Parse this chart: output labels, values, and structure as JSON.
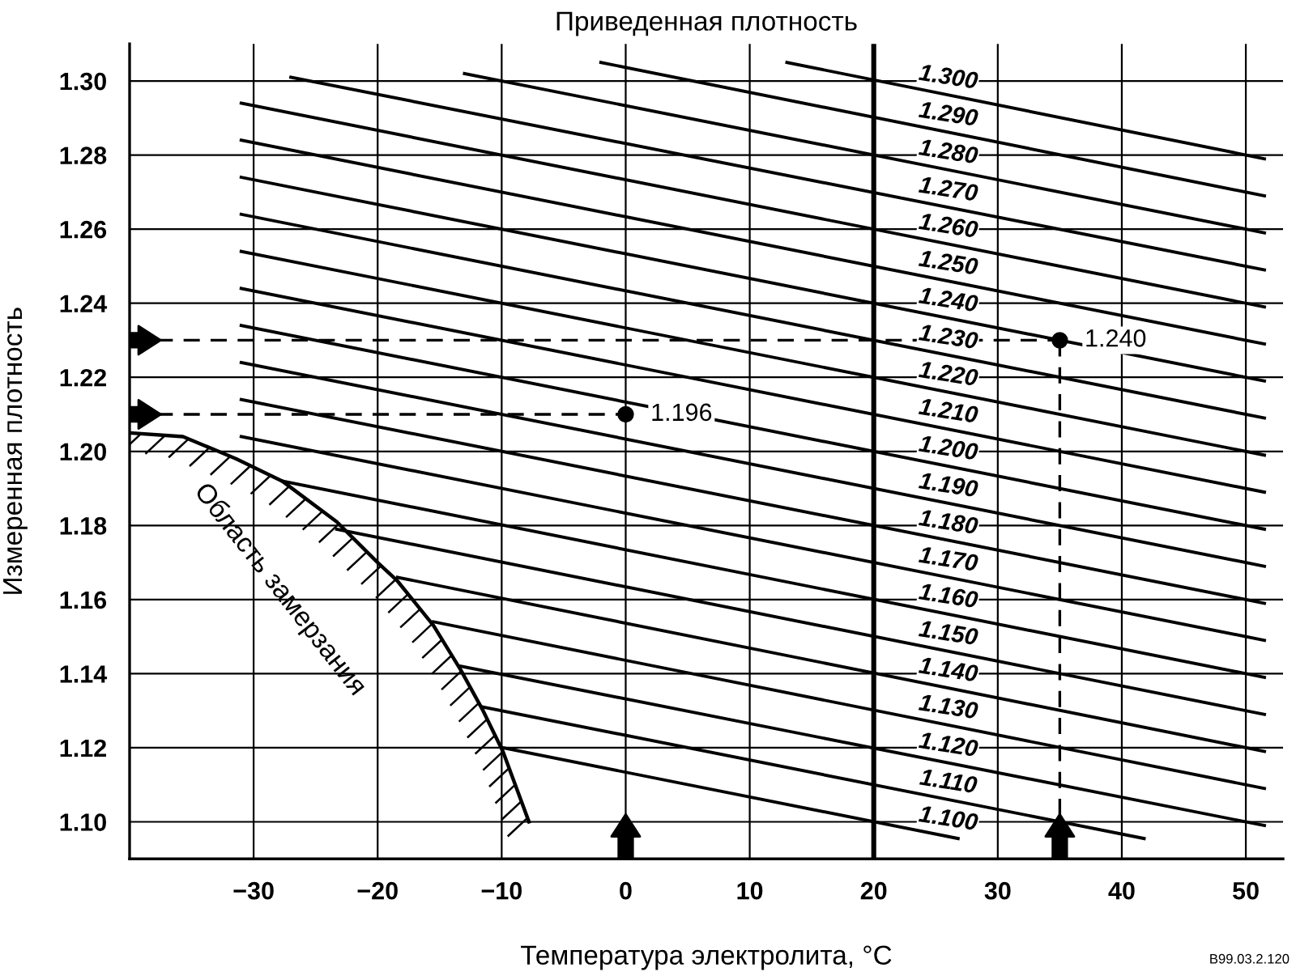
{
  "chart_data": {
    "type": "line",
    "title": "Приведенная плотность",
    "xlabel": "Температура электролита, °C",
    "ylabel": "Измеренная плотность",
    "xlim": [
      -40,
      53
    ],
    "ylim": [
      1.09,
      1.31
    ],
    "xticks": [
      {
        "value": -30,
        "label": "−30"
      },
      {
        "value": -20,
        "label": "−20"
      },
      {
        "value": -10,
        "label": "−10"
      },
      0,
      10,
      20,
      30,
      40,
      50
    ],
    "yticks": [
      {
        "value": 1.1,
        "label": "1.10"
      },
      {
        "value": 1.12,
        "label": "1.12"
      },
      {
        "value": 1.14,
        "label": "1.14"
      },
      {
        "value": 1.16,
        "label": "1.16"
      },
      {
        "value": 1.18,
        "label": "1.18"
      },
      {
        "value": 1.2,
        "label": "1.20"
      },
      {
        "value": 1.22,
        "label": "1.22"
      },
      {
        "value": 1.24,
        "label": "1.24"
      },
      {
        "value": 1.26,
        "label": "1.26"
      },
      {
        "value": 1.28,
        "label": "1.28"
      },
      {
        "value": 1.3,
        "label": "1.30"
      }
    ],
    "ref_lines": [
      {
        "axis": "x",
        "value": 20,
        "color": "#000000"
      }
    ],
    "grid": true,
    "legend": false,
    "marker": "none",
    "series": [
      {
        "name": "1.300",
        "color": "#000000",
        "x": [
          13,
          51.5
        ],
        "values": [
          1.305,
          1.279
        ]
      },
      {
        "name": "1.290",
        "color": "#000000",
        "x": [
          -2,
          51.5
        ],
        "values": [
          1.305,
          1.269
        ]
      },
      {
        "name": "1.280",
        "color": "#000000",
        "x": [
          -13,
          51.5
        ],
        "values": [
          1.302,
          1.259
        ]
      },
      {
        "name": "1.270",
        "color": "#000000",
        "x": [
          -27,
          51.5
        ],
        "values": [
          1.301,
          1.249
        ]
      },
      {
        "name": "1.260",
        "color": "#000000",
        "x": [
          -31,
          51.5
        ],
        "values": [
          1.294,
          1.239
        ]
      },
      {
        "name": "1.250",
        "color": "#000000",
        "x": [
          -31,
          51.5
        ],
        "values": [
          1.284,
          1.229
        ]
      },
      {
        "name": "1.240",
        "color": "#000000",
        "x": [
          -31,
          51.5
        ],
        "values": [
          1.274,
          1.219
        ]
      },
      {
        "name": "1.230",
        "color": "#000000",
        "x": [
          -31,
          51.5
        ],
        "values": [
          1.264,
          1.209
        ]
      },
      {
        "name": "1.220",
        "color": "#000000",
        "x": [
          -31,
          51.5
        ],
        "values": [
          1.254,
          1.199
        ]
      },
      {
        "name": "1.210",
        "color": "#000000",
        "x": [
          -31,
          51.5
        ],
        "values": [
          1.244,
          1.189
        ]
      },
      {
        "name": "1.200",
        "color": "#000000",
        "x": [
          -31,
          51.5
        ],
        "values": [
          1.234,
          1.179
        ]
      },
      {
        "name": "1.190",
        "color": "#000000",
        "x": [
          -31,
          51.5
        ],
        "values": [
          1.224,
          1.169
        ]
      },
      {
        "name": "1.180",
        "color": "#000000",
        "x": [
          -31,
          51.5
        ],
        "values": [
          1.214,
          1.159
        ]
      },
      {
        "name": "1.170",
        "color": "#000000",
        "x": [
          -31,
          51.5
        ],
        "values": [
          1.204,
          1.149
        ]
      },
      {
        "name": "1.160",
        "color": "#000000",
        "x": [
          -27.7,
          51.5
        ],
        "values": [
          1.192,
          1.139
        ]
      },
      {
        "name": "1.150",
        "color": "#000000",
        "x": [
          -23.3,
          51.5
        ],
        "values": [
          1.179,
          1.129
        ]
      },
      {
        "name": "1.140",
        "color": "#000000",
        "x": [
          -18.4,
          51.5
        ],
        "values": [
          1.166,
          1.119
        ]
      },
      {
        "name": "1.130",
        "color": "#000000",
        "x": [
          -15.5,
          51.5
        ],
        "values": [
          1.154,
          1.109
        ]
      },
      {
        "name": "1.120",
        "color": "#000000",
        "x": [
          -13.3,
          51.5
        ],
        "values": [
          1.142,
          1.099
        ]
      },
      {
        "name": "1.110",
        "color": "#000000",
        "x": [
          -11.5,
          41.8
        ],
        "values": [
          1.131,
          1.0955
        ]
      },
      {
        "name": "1.100",
        "color": "#000000",
        "x": [
          -9.9,
          26.8
        ],
        "values": [
          1.12,
          1.0955
        ]
      },
      {
        "color": "#000000",
        "line_style": "solid",
        "x": [
          -40,
          -35.7,
          -31.4,
          -27.7,
          -23.3,
          -20,
          -18.4,
          -15.5,
          -13.3,
          -11.5,
          -9.9,
          -7.8
        ],
        "values": [
          1.205,
          1.204,
          1.198,
          1.192,
          1.181,
          1.17,
          1.165,
          1.153,
          1.141,
          1.13,
          1.119,
          1.1
        ]
      },
      {
        "color": "#000000",
        "line_style": "dashed",
        "x": [
          -40,
          35
        ],
        "values": [
          1.23,
          1.23
        ]
      },
      {
        "color": "#000000",
        "line_style": "dashed",
        "x": [
          -40,
          0
        ],
        "values": [
          1.21,
          1.21
        ]
      },
      {
        "color": "#000000",
        "line_style": "dashed",
        "x": [
          35,
          35
        ],
        "values": [
          1.23,
          1.09
        ]
      },
      {
        "type": "scatter",
        "color": "#000000",
        "marker": "circle",
        "x": [
          0,
          35
        ],
        "values": [
          1.21,
          1.23
        ]
      }
    ],
    "annotations": [
      "Область замерзания",
      "B99.03.2.120",
      {
        "text": "1.196",
        "x": 0,
        "y": 1.21
      },
      {
        "text": "1.240",
        "x": 35,
        "y": 1.23
      }
    ]
  }
}
